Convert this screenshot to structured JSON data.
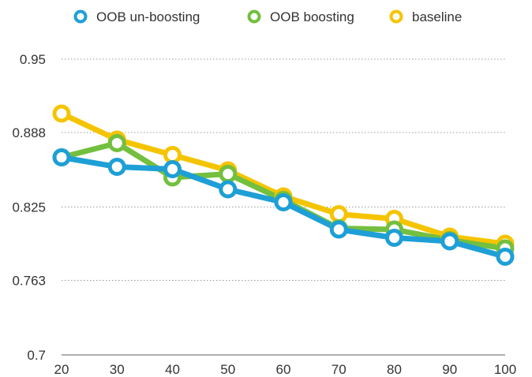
{
  "chart_data": {
    "type": "line",
    "title": "",
    "xlabel": "",
    "ylabel": "",
    "x": [
      20,
      30,
      40,
      50,
      60,
      70,
      80,
      90,
      100
    ],
    "x_tick_labels": [
      "20",
      "30",
      "40",
      "50",
      "60",
      "70",
      "80",
      "90",
      "100"
    ],
    "ylim": [
      0.7,
      0.95
    ],
    "y_ticks": [
      0.7,
      0.763,
      0.825,
      0.888,
      0.95
    ],
    "y_tick_labels": [
      "0.7",
      "0.763",
      "0.825",
      "0.888",
      "0.95"
    ],
    "grid": true,
    "legend_position": "top",
    "series": [
      {
        "name": "OOB un-boosting",
        "color": "#1e9fd6",
        "values": [
          0.867,
          0.859,
          0.857,
          0.84,
          0.829,
          0.806,
          0.799,
          0.796,
          0.783
        ]
      },
      {
        "name": "OOB boosting",
        "color": "#73bf3f",
        "values": [
          0.867,
          0.879,
          0.85,
          0.853,
          0.831,
          0.807,
          0.806,
          0.797,
          0.79
        ]
      },
      {
        "name": "baseline",
        "color": "#f5c400",
        "values": [
          0.904,
          0.882,
          0.869,
          0.856,
          0.834,
          0.819,
          0.815,
          0.8,
          0.794
        ]
      }
    ]
  }
}
